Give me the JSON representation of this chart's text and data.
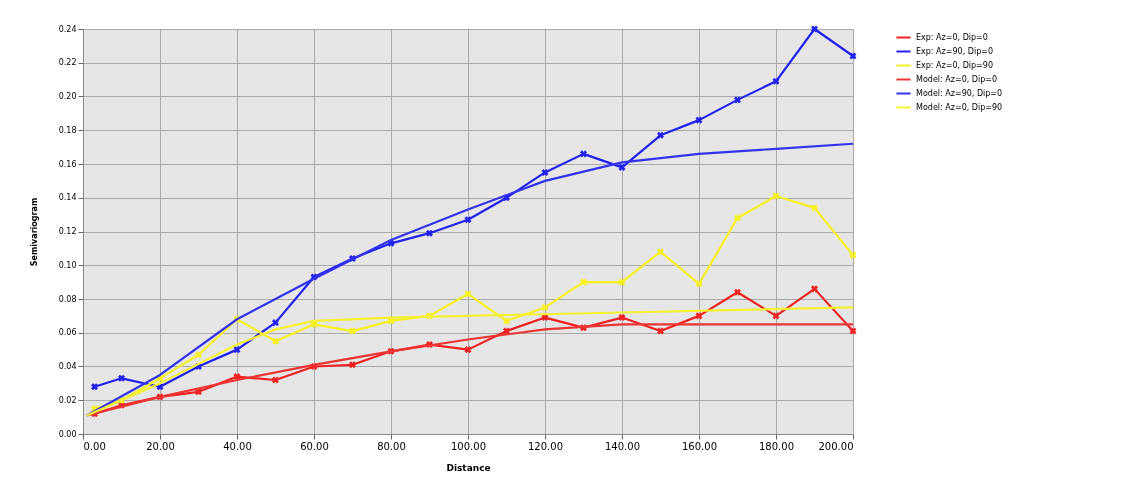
{
  "chart_data": {
    "type": "line",
    "xlabel": "Distance",
    "ylabel": "Semivariogram",
    "xlim": [
      0,
      200
    ],
    "ylim": [
      0,
      0.24
    ],
    "xticks": [
      {
        "value": 0,
        "label": "0.00"
      },
      {
        "value": 20,
        "label": "20.00"
      },
      {
        "value": 40,
        "label": "40.00"
      },
      {
        "value": 60,
        "label": "60.00"
      },
      {
        "value": 80,
        "label": "80.00"
      },
      {
        "value": 100,
        "label": "100.00"
      },
      {
        "value": 120,
        "label": "120.00"
      },
      {
        "value": 140,
        "label": "140.00"
      },
      {
        "value": 160,
        "label": "160.00"
      },
      {
        "value": 180,
        "label": "180.00"
      },
      {
        "value": 200,
        "label": "200.00"
      }
    ],
    "yticks": [
      {
        "value": 0,
        "label": "0.00"
      },
      {
        "value": 0.02,
        "label": "0.02"
      },
      {
        "value": 0.04,
        "label": "0.04"
      },
      {
        "value": 0.06,
        "label": "0.06"
      },
      {
        "value": 0.08,
        "label": "0.08"
      },
      {
        "value": 0.1,
        "label": "0.10"
      },
      {
        "value": 0.12,
        "label": "0.12"
      },
      {
        "value": 0.14,
        "label": "0.14"
      },
      {
        "value": 0.16,
        "label": "0.16"
      },
      {
        "value": 0.18,
        "label": "0.18"
      },
      {
        "value": 0.2,
        "label": "0.20"
      },
      {
        "value": 0.22,
        "label": "0.22"
      },
      {
        "value": 0.24,
        "label": "0.24"
      }
    ],
    "grid": true,
    "legend": "top right",
    "series": [
      {
        "name": "Exp: Az=0, Dip=0",
        "color": "#ee2222",
        "marker": "cross",
        "x": [
          3,
          10,
          20,
          30,
          40,
          50,
          60,
          70,
          80,
          90,
          100,
          110,
          120,
          130,
          140,
          150,
          160,
          170,
          180,
          190,
          200
        ],
        "values": [
          0.012,
          0.017,
          0.022,
          0.025,
          0.034,
          0.032,
          0.04,
          0.041,
          0.049,
          0.053,
          0.05,
          0.061,
          0.069,
          0.063,
          0.069,
          0.061,
          0.07,
          0.084,
          0.07,
          0.086,
          0.061
        ]
      },
      {
        "name": "Exp: Az=90, Dip=0",
        "color": "#2222ee",
        "marker": "cross",
        "x": [
          3,
          10,
          20,
          30,
          40,
          50,
          60,
          70,
          80,
          90,
          100,
          110,
          120,
          130,
          140,
          150,
          160,
          170,
          180,
          190,
          200
        ],
        "values": [
          0.028,
          0.033,
          0.028,
          0.04,
          0.05,
          0.066,
          0.093,
          0.104,
          0.113,
          0.119,
          0.127,
          0.14,
          0.155,
          0.166,
          0.158,
          0.177,
          0.186,
          0.198,
          0.209,
          0.24,
          0.224
        ]
      },
      {
        "name": "Exp: Az=0, Dip=90",
        "color": "#f5f020",
        "marker": "cross",
        "x": [
          3,
          10,
          20,
          30,
          40,
          50,
          60,
          70,
          80,
          90,
          100,
          110,
          120,
          130,
          140,
          150,
          160,
          170,
          180,
          190,
          200
        ],
        "values": [
          0.015,
          0.02,
          0.033,
          0.047,
          0.068,
          0.055,
          0.065,
          0.061,
          0.067,
          0.07,
          0.083,
          0.067,
          0.075,
          0.09,
          0.09,
          0.108,
          0.089,
          0.128,
          0.141,
          0.134,
          0.106
        ]
      },
      {
        "name": "Model: Az=0, Dip=0",
        "color": "#ee3333",
        "marker": "none",
        "x": [
          1,
          20,
          40,
          60,
          80,
          100,
          120,
          140,
          160,
          180,
          200
        ],
        "values": [
          0.011,
          0.022,
          0.032,
          0.041,
          0.049,
          0.056,
          0.062,
          0.065,
          0.065,
          0.065,
          0.065
        ]
      },
      {
        "name": "Model: Az=90, Dip=0",
        "color": "#3333ee",
        "marker": "none",
        "x": [
          1,
          20,
          40,
          60,
          80,
          100,
          120,
          140,
          160,
          180,
          200
        ],
        "values": [
          0.011,
          0.035,
          0.068,
          0.092,
          0.115,
          0.133,
          0.15,
          0.161,
          0.166,
          0.169,
          0.172
        ]
      },
      {
        "name": "Model: Az=0, Dip=90",
        "color": "#f5f030",
        "marker": "none",
        "x": [
          1,
          20,
          40,
          50,
          60,
          80,
          100,
          140,
          200
        ],
        "values": [
          0.011,
          0.03,
          0.053,
          0.062,
          0.067,
          0.069,
          0.07,
          0.072,
          0.075
        ]
      }
    ]
  }
}
